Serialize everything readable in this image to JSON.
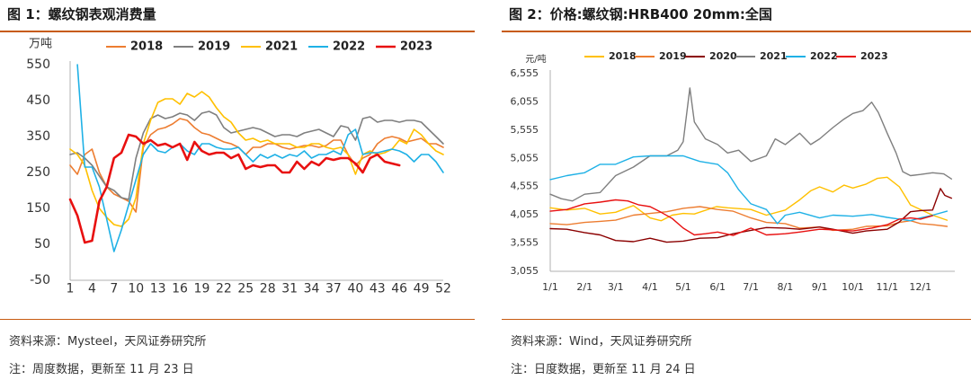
{
  "figures": [
    {
      "title": "图 1：螺纹钢表观消费量",
      "source": "资料来源：Mysteel，天风证券研究所",
      "note": "注：周度数据，更新至 11 月 23 日"
    },
    {
      "title": "图 2：价格:螺纹钢:HRB400 20mm:全国",
      "source": "资料来源：Wind，天风证券研究所",
      "note": "注：日度数据，更新至 11 月 24 日"
    }
  ],
  "chart_data": [
    {
      "type": "line",
      "title": "",
      "ylabel": "万吨",
      "ylim": [
        -50,
        550
      ],
      "yticks": [
        "550",
        "450",
        "350",
        "250",
        "150",
        "50",
        "-50"
      ],
      "ytick_values": [
        550,
        450,
        350,
        250,
        150,
        50,
        -50
      ],
      "xlim": [
        1,
        52
      ],
      "xticks": [
        "1",
        "4",
        "7",
        "10",
        "13",
        "16",
        "19",
        "22",
        "25",
        "28",
        "31",
        "34",
        "37",
        "40",
        "43",
        "46",
        "49",
        "52"
      ],
      "xtick_values": [
        1,
        4,
        7,
        10,
        13,
        16,
        19,
        22,
        25,
        28,
        31,
        34,
        37,
        40,
        43,
        46,
        49,
        52
      ],
      "series": [
        {
          "name": "2018",
          "color": "#ed7d31",
          "width": 1.6,
          "x_start": 1,
          "values": [
            270,
            245,
            300,
            315,
            250,
            210,
            190,
            180,
            170,
            140,
            320,
            355,
            370,
            375,
            385,
            400,
            395,
            375,
            360,
            355,
            345,
            335,
            330,
            320,
            300,
            320,
            320,
            330,
            330,
            320,
            315,
            320,
            325,
            325,
            320,
            325,
            340,
            340,
            300,
            270,
            290,
            300,
            330,
            345,
            350,
            345,
            335,
            340,
            345,
            330,
            330,
            320
          ]
        },
        {
          "name": "2019",
          "color": "#7f7f7f",
          "width": 1.6,
          "x_start": 1,
          "values": [
            300,
            305,
            290,
            270,
            240,
            210,
            200,
            180,
            175,
            290,
            360,
            400,
            410,
            400,
            405,
            415,
            410,
            395,
            415,
            420,
            410,
            375,
            360,
            365,
            370,
            375,
            370,
            360,
            350,
            355,
            355,
            350,
            360,
            365,
            370,
            360,
            350,
            380,
            375,
            340,
            400,
            405,
            390,
            395,
            395,
            390,
            395,
            395,
            390,
            370,
            350,
            330
          ]
        },
        {
          "name": "2021",
          "color": "#ffc000",
          "width": 1.6,
          "x_start": 1,
          "values": [
            315,
            300,
            270,
            200,
            150,
            125,
            105,
            100,
            120,
            180,
            330,
            395,
            445,
            455,
            455,
            440,
            470,
            460,
            475,
            460,
            430,
            405,
            390,
            360,
            340,
            345,
            335,
            340,
            330,
            330,
            330,
            320,
            320,
            330,
            330,
            320,
            315,
            320,
            300,
            245,
            300,
            310,
            300,
            305,
            315,
            340,
            330,
            370,
            355,
            330,
            310,
            300
          ]
        },
        {
          "name": "2022",
          "color": "#1fb1e6",
          "width": 1.6,
          "x_start": 2,
          "values": [
            550,
            265,
            265,
            210,
            120,
            30,
            90,
            160,
            230,
            300,
            330,
            310,
            305,
            320,
            330,
            310,
            300,
            330,
            330,
            320,
            315,
            315,
            320,
            300,
            280,
            300,
            290,
            300,
            290,
            300,
            295,
            310,
            290,
            300,
            300,
            310,
            300,
            355,
            370,
            300,
            305,
            305,
            310,
            315,
            310,
            300,
            280,
            300,
            300,
            280,
            250
          ]
        },
        {
          "name": "2023",
          "color": "#e81010",
          "width": 2.6,
          "x_start": 1,
          "values": [
            175,
            130,
            55,
            60,
            170,
            210,
            290,
            305,
            355,
            350,
            330,
            340,
            325,
            330,
            320,
            330,
            285,
            335,
            310,
            300,
            305,
            305,
            290,
            300,
            260,
            270,
            265,
            270,
            270,
            250,
            250,
            280,
            260,
            280,
            270,
            290,
            285,
            290,
            290,
            275,
            250,
            290,
            300,
            280,
            275,
            270
          ]
        }
      ]
    },
    {
      "type": "line",
      "title": "",
      "ylabel": "元/吨",
      "ylim": [
        3055,
        6555
      ],
      "yticks": [
        "6,555",
        "6,055",
        "5,555",
        "5,055",
        "4,555",
        "4,055",
        "3,555",
        "3,055"
      ],
      "ytick_values": [
        6555,
        6055,
        5555,
        5055,
        4555,
        4055,
        3555,
        3055
      ],
      "xlim": [
        0,
        365
      ],
      "xticks": [
        "1/1",
        "2/1",
        "3/1",
        "4/1",
        "5/1",
        "6/1",
        "7/1",
        "8/1",
        "9/1",
        "10/1",
        "11/1",
        "12/1"
      ],
      "xtick_values": [
        0,
        31,
        59,
        90,
        120,
        151,
        181,
        212,
        243,
        273,
        304,
        334
      ],
      "series": [
        {
          "name": "2018",
          "color": "#ffc000",
          "width": 1.4,
          "points": [
            [
              0,
              4180
            ],
            [
              15,
              4140
            ],
            [
              31,
              4170
            ],
            [
              45,
              4070
            ],
            [
              59,
              4100
            ],
            [
              75,
              4220
            ],
            [
              90,
              4000
            ],
            [
              100,
              3950
            ],
            [
              110,
              4050
            ],
            [
              120,
              4080
            ],
            [
              130,
              4070
            ],
            [
              150,
              4200
            ],
            [
              160,
              4180
            ],
            [
              181,
              4150
            ],
            [
              195,
              4050
            ],
            [
              212,
              4140
            ],
            [
              225,
              4320
            ],
            [
              235,
              4480
            ],
            [
              243,
              4550
            ],
            [
              255,
              4460
            ],
            [
              265,
              4580
            ],
            [
              273,
              4530
            ],
            [
              285,
              4600
            ],
            [
              295,
              4700
            ],
            [
              304,
              4720
            ],
            [
              315,
              4550
            ],
            [
              325,
              4230
            ],
            [
              334,
              4150
            ],
            [
              345,
              4050
            ],
            [
              358,
              3960
            ]
          ]
        },
        {
          "name": "2019",
          "color": "#ed7d31",
          "width": 1.4,
          "points": [
            [
              0,
              3900
            ],
            [
              15,
              3880
            ],
            [
              31,
              3920
            ],
            [
              45,
              3940
            ],
            [
              59,
              3960
            ],
            [
              75,
              4050
            ],
            [
              90,
              4080
            ],
            [
              105,
              4110
            ],
            [
              120,
              4170
            ],
            [
              135,
              4200
            ],
            [
              151,
              4150
            ],
            [
              165,
              4120
            ],
            [
              181,
              4000
            ],
            [
              195,
              3920
            ],
            [
              212,
              3900
            ],
            [
              225,
              3820
            ],
            [
              243,
              3840
            ],
            [
              255,
              3780
            ],
            [
              273,
              3800
            ],
            [
              285,
              3850
            ],
            [
              304,
              3860
            ],
            [
              315,
              3920
            ],
            [
              325,
              3950
            ],
            [
              334,
              3900
            ],
            [
              345,
              3880
            ],
            [
              358,
              3850
            ]
          ]
        },
        {
          "name": "2020",
          "color": "#8b0000",
          "width": 1.4,
          "points": [
            [
              0,
              3810
            ],
            [
              15,
              3800
            ],
            [
              31,
              3740
            ],
            [
              45,
              3700
            ],
            [
              59,
              3600
            ],
            [
              75,
              3580
            ],
            [
              90,
              3640
            ],
            [
              105,
              3570
            ],
            [
              120,
              3590
            ],
            [
              135,
              3640
            ],
            [
              151,
              3650
            ],
            [
              165,
              3720
            ],
            [
              181,
              3780
            ],
            [
              195,
              3830
            ],
            [
              212,
              3820
            ],
            [
              225,
              3800
            ],
            [
              243,
              3840
            ],
            [
              255,
              3800
            ],
            [
              273,
              3730
            ],
            [
              285,
              3770
            ],
            [
              304,
              3800
            ],
            [
              315,
              3930
            ],
            [
              325,
              4110
            ],
            [
              334,
              4130
            ],
            [
              345,
              4140
            ],
            [
              352,
              4520
            ],
            [
              356,
              4400
            ],
            [
              362,
              4350
            ]
          ]
        },
        {
          "name": "2021",
          "color": "#7f7f7f",
          "width": 1.4,
          "points": [
            [
              0,
              4420
            ],
            [
              10,
              4340
            ],
            [
              20,
              4300
            ],
            [
              31,
              4420
            ],
            [
              45,
              4450
            ],
            [
              59,
              4750
            ],
            [
              75,
              4900
            ],
            [
              90,
              5100
            ],
            [
              105,
              5100
            ],
            [
              115,
              5200
            ],
            [
              120,
              5350
            ],
            [
              126,
              6300
            ],
            [
              130,
              5700
            ],
            [
              140,
              5400
            ],
            [
              151,
              5300
            ],
            [
              160,
              5150
            ],
            [
              170,
              5200
            ],
            [
              181,
              5000
            ],
            [
              195,
              5100
            ],
            [
              203,
              5400
            ],
            [
              212,
              5300
            ],
            [
              225,
              5500
            ],
            [
              235,
              5300
            ],
            [
              243,
              5400
            ],
            [
              255,
              5600
            ],
            [
              265,
              5750
            ],
            [
              273,
              5850
            ],
            [
              282,
              5900
            ],
            [
              290,
              6050
            ],
            [
              296,
              5870
            ],
            [
              304,
              5500
            ],
            [
              312,
              5150
            ],
            [
              318,
              4820
            ],
            [
              325,
              4750
            ],
            [
              334,
              4770
            ],
            [
              345,
              4800
            ],
            [
              355,
              4780
            ],
            [
              362,
              4690
            ]
          ]
        },
        {
          "name": "2022",
          "color": "#1fb1e6",
          "width": 1.4,
          "points": [
            [
              0,
              4680
            ],
            [
              15,
              4750
            ],
            [
              31,
              4800
            ],
            [
              45,
              4950
            ],
            [
              59,
              4950
            ],
            [
              75,
              5080
            ],
            [
              90,
              5100
            ],
            [
              105,
              5100
            ],
            [
              120,
              5100
            ],
            [
              135,
              5000
            ],
            [
              151,
              4950
            ],
            [
              160,
              4800
            ],
            [
              170,
              4500
            ],
            [
              181,
              4250
            ],
            [
              195,
              4150
            ],
            [
              205,
              3900
            ],
            [
              212,
              4050
            ],
            [
              225,
              4100
            ],
            [
              243,
              4000
            ],
            [
              255,
              4050
            ],
            [
              273,
              4030
            ],
            [
              290,
              4060
            ],
            [
              304,
              4010
            ],
            [
              315,
              3980
            ],
            [
              325,
              3950
            ],
            [
              334,
              4000
            ],
            [
              345,
              4050
            ],
            [
              358,
              4120
            ]
          ]
        },
        {
          "name": "2023",
          "color": "#e81010",
          "width": 1.4,
          "points": [
            [
              0,
              4120
            ],
            [
              15,
              4150
            ],
            [
              31,
              4250
            ],
            [
              45,
              4280
            ],
            [
              59,
              4320
            ],
            [
              70,
              4300
            ],
            [
              80,
              4230
            ],
            [
              90,
              4200
            ],
            [
              100,
              4100
            ],
            [
              110,
              3990
            ],
            [
              120,
              3820
            ],
            [
              130,
              3700
            ],
            [
              140,
              3720
            ],
            [
              151,
              3750
            ],
            [
              165,
              3690
            ],
            [
              181,
              3820
            ],
            [
              195,
              3700
            ],
            [
              212,
              3720
            ],
            [
              225,
              3750
            ],
            [
              243,
              3800
            ],
            [
              255,
              3790
            ],
            [
              273,
              3770
            ],
            [
              290,
              3820
            ],
            [
              304,
              3880
            ],
            [
              315,
              3980
            ],
            [
              325,
              4000
            ],
            [
              334,
              3980
            ],
            [
              345,
              4040
            ]
          ]
        }
      ]
    }
  ]
}
